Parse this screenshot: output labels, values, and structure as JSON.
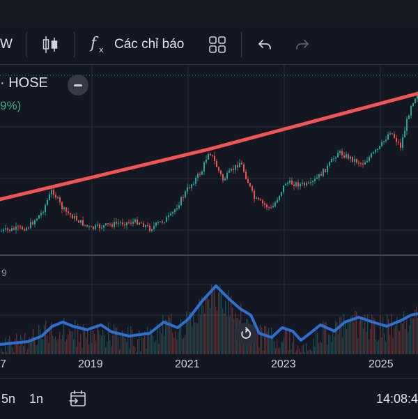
{
  "toolbar": {
    "interval_label": "W",
    "indicators_label": "Các chỉ báo",
    "icons": [
      "candlestick-icon",
      "function-icon",
      "layout-grid-icon",
      "undo-icon",
      "redo-icon"
    ]
  },
  "legend": {
    "symbol": "· HOSE",
    "change": "9%)"
  },
  "volume_label": "9",
  "chart_data": {
    "type": "line",
    "x_ticks": [
      "7",
      "2019",
      "2021",
      "2023",
      "2025"
    ],
    "colors": {
      "up": "#26a69a",
      "down": "#ef5350",
      "trendline": "#f05454",
      "volume_ma": "#2f6fd0"
    }
  },
  "bottombar": {
    "ranges": [
      "5n",
      "1n"
    ],
    "time": "14:08:4"
  }
}
